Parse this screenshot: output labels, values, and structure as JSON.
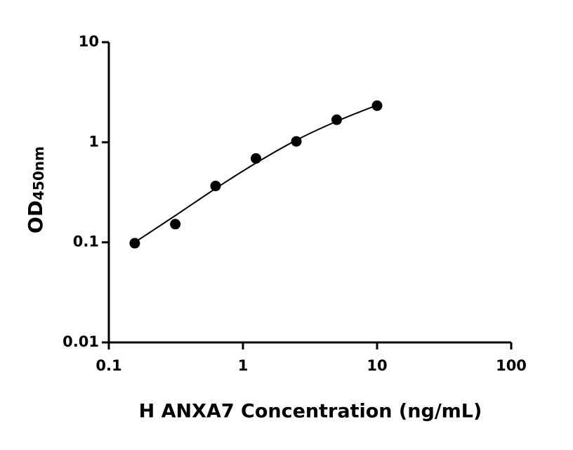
{
  "chart_data": {
    "type": "scatter",
    "xlabel": "H ANXA7 Concentration (ng/mL)",
    "ylabel": "OD",
    "ylabel_sub": "450nm",
    "xscale": "log",
    "yscale": "log",
    "xlim": [
      0.1,
      100
    ],
    "ylim": [
      0.01,
      10
    ],
    "xticks": [
      0.1,
      1,
      10,
      100
    ],
    "yticks": [
      0.01,
      0.1,
      1,
      10
    ],
    "points": {
      "color": "#000000",
      "x": [
        0.156,
        0.313,
        0.625,
        1.25,
        2.5,
        5,
        10
      ],
      "values": [
        0.098,
        0.152,
        0.366,
        0.689,
        1.02,
        1.68,
        2.32
      ]
    },
    "fit": {
      "color": "#000000",
      "x": [
        0.156,
        0.313,
        0.625,
        1.25,
        2.5,
        5,
        10
      ],
      "values": [
        0.1,
        0.185,
        0.345,
        0.62,
        1.05,
        1.62,
        2.35
      ]
    }
  }
}
